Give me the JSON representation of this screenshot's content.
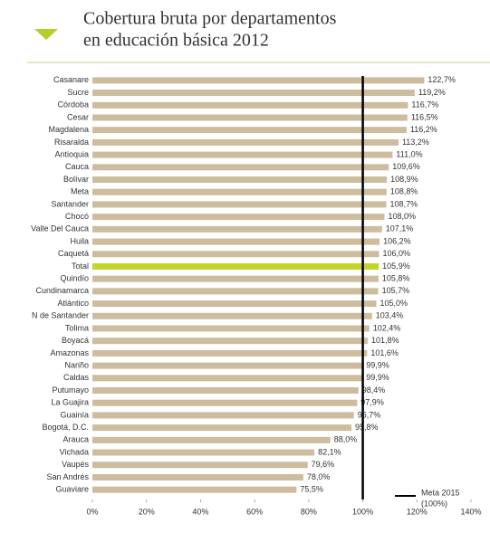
{
  "chart_data": {
    "type": "barh",
    "title": [
      "Cobertura bruta por departamentos",
      "en educación básica 2012"
    ],
    "categories": [
      "Casanare",
      "Sucre",
      "Córdoba",
      "Cesar",
      "Magdalena",
      "Risaralda",
      "Antioquia",
      "Cauca",
      "Bolívar",
      "Meta",
      "Santander",
      "Chocó",
      "Valle Del Cauca",
      "Huila",
      "Caquetá",
      "Total",
      "Quindío",
      "Cundinamarca",
      "Atlántico",
      "N de Santander",
      "Tolima",
      "Boyacá",
      "Amazonas",
      "Nariño",
      "Caldas",
      "Putumayo",
      "La Guajira",
      "Guainía",
      "Bogotá, D.C.",
      "Arauca",
      "Vichada",
      "Vaupés",
      "San Andrés",
      "Guaviare"
    ],
    "values": [
      122.7,
      119.2,
      116.7,
      116.5,
      116.2,
      113.2,
      111.0,
      109.6,
      108.9,
      108.8,
      108.7,
      108.0,
      107.1,
      106.2,
      106.0,
      105.9,
      105.8,
      105.7,
      105.0,
      103.4,
      102.4,
      101.8,
      101.6,
      99.9,
      99.9,
      98.4,
      97.9,
      96.7,
      95.8,
      88.0,
      82.1,
      79.6,
      78.0,
      75.5
    ],
    "value_labels": [
      "122,7%",
      "119,2%",
      "116,7%",
      "116,5%",
      "116,2%",
      "113,2%",
      "111,0%",
      "109,6%",
      "108,9%",
      "108,8%",
      "108,7%",
      "108,0%",
      "107,1%",
      "106,2%",
      "106,0%",
      "105,9%",
      "105,8%",
      "105,7%",
      "105,0%",
      "103,4%",
      "102,4%",
      "101,8%",
      "101,6%",
      "99,9%",
      "99,9%",
      "98,4%",
      "97,9%",
      "96,7%",
      "95,8%",
      "88,0%",
      "82,1%",
      "79,6%",
      "78,0%",
      "75,5%"
    ],
    "colors": [
      "#cdbd9e",
      "#cdbd9e",
      "#cdbd9e",
      "#cdbd9e",
      "#cdbd9e",
      "#cdbd9e",
      "#cdbd9e",
      "#cdbd9e",
      "#cdbd9e",
      "#cdbd9e",
      "#cdbd9e",
      "#cdbd9e",
      "#cdbd9e",
      "#cdbd9e",
      "#cdbd9e",
      "#c3d62b",
      "#cdbd9e",
      "#cdbd9e",
      "#cdbd9e",
      "#cdbd9e",
      "#cdbd9e",
      "#cdbd9e",
      "#cdbd9e",
      "#cdbd9e",
      "#cdbd9e",
      "#cdbd9e",
      "#cdbd9e",
      "#cdbd9e",
      "#cdbd9e",
      "#cdbd9e",
      "#cdbd9e",
      "#cdbd9e",
      "#cdbd9e",
      "#cdbd9e"
    ],
    "xlim": [
      0,
      140
    ],
    "xticks": [
      {
        "value": 0,
        "label": "0%"
      },
      {
        "value": 20,
        "label": "20%"
      },
      {
        "value": 40,
        "label": "40%"
      },
      {
        "value": 60,
        "label": "60%"
      },
      {
        "value": 80,
        "label": "80%"
      },
      {
        "value": 100,
        "label": "100%"
      },
      {
        "value": 120,
        "label": "120%"
      },
      {
        "value": 140,
        "label": "140%"
      }
    ],
    "reference_line": {
      "value": 100,
      "label": [
        "Meta 2015",
        "(100%)"
      ],
      "color": "#000000"
    }
  }
}
